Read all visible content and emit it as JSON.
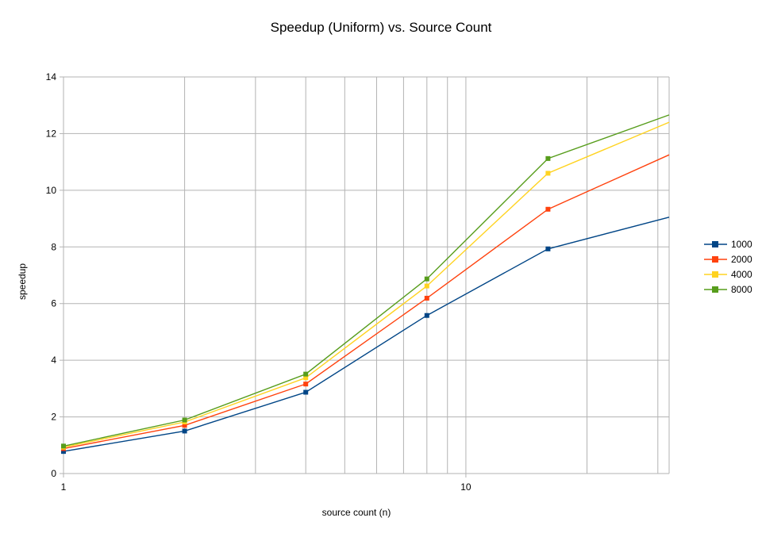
{
  "chart_data": {
    "type": "line",
    "title": "Speedup (Uniform) vs. Source Count",
    "xlabel": "source count (n)",
    "ylabel": "speedup",
    "x_scale": "log",
    "x": [
      1,
      2,
      4,
      8,
      16,
      32
    ],
    "xlim": [
      1,
      32
    ],
    "ylim": [
      0,
      14
    ],
    "y_ticks": [
      0,
      2,
      4,
      6,
      8,
      10,
      12,
      14
    ],
    "x_tick_labels": [
      "1",
      "10"
    ],
    "grid": true,
    "legend_position": "right",
    "series": [
      {
        "name": "1000",
        "color": "#004586",
        "values": [
          0.78,
          1.5,
          2.87,
          5.58,
          7.93,
          9.05
        ]
      },
      {
        "name": "2000",
        "color": "#ff420e",
        "values": [
          0.88,
          1.7,
          3.16,
          6.19,
          9.33,
          11.25
        ]
      },
      {
        "name": "4000",
        "color": "#ffd320",
        "values": [
          0.93,
          1.82,
          3.38,
          6.62,
          10.6,
          12.4
        ]
      },
      {
        "name": "8000",
        "color": "#579d1c",
        "values": [
          0.97,
          1.89,
          3.51,
          6.87,
          11.12,
          12.66
        ]
      }
    ]
  }
}
